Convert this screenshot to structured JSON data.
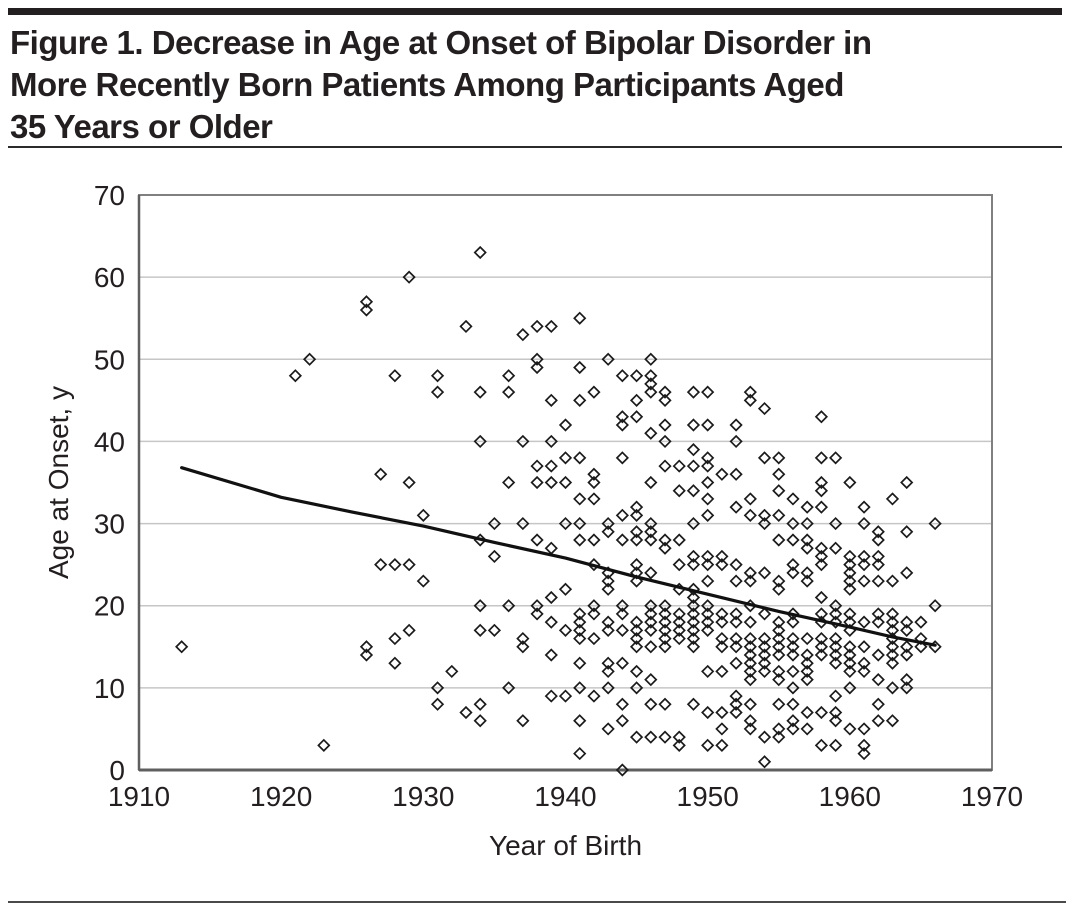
{
  "figure": {
    "title_lines": [
      "Figure 1. Decrease in Age at Onset of Bipolar Disorder in",
      "More Recently Born Patients Among Participants Aged",
      "35 Years or Older"
    ]
  },
  "colors": {
    "title": "#231f20",
    "plot_border": "#808080",
    "axis_line": "#5f5f5f",
    "gridline": "#c6c6c6",
    "marker": "#1b1b1b",
    "trend": "#111111",
    "text": "#231f20"
  },
  "chart_data": {
    "type": "scatter",
    "title": "",
    "xlabel": "Year of Birth",
    "ylabel": "Age at Onset, y",
    "xlim": [
      1910,
      1970
    ],
    "ylim": [
      0,
      70
    ],
    "xticks": [
      1910,
      1920,
      1930,
      1940,
      1950,
      1960,
      1970
    ],
    "yticks": [
      0,
      10,
      20,
      30,
      40,
      50,
      60,
      70
    ],
    "grid": "horizontal",
    "legend": "none",
    "marker": "open-diamond",
    "trend_line": {
      "style": "solid-black-curve",
      "points": [
        [
          1913,
          36.8
        ],
        [
          1920,
          33.2
        ],
        [
          1925,
          31.4
        ],
        [
          1930,
          29.7
        ],
        [
          1935,
          27.7
        ],
        [
          1940,
          25.8
        ],
        [
          1945,
          23.5
        ],
        [
          1950,
          21.4
        ],
        [
          1955,
          19.3
        ],
        [
          1960,
          17.4
        ],
        [
          1963,
          16.2
        ],
        [
          1966,
          15.2
        ]
      ]
    },
    "points": [
      [
        1913,
        15
      ],
      [
        1921,
        48
      ],
      [
        1922,
        50
      ],
      [
        1923,
        3
      ],
      [
        1926,
        57
      ],
      [
        1926,
        56
      ],
      [
        1926,
        15
      ],
      [
        1926,
        14
      ],
      [
        1927,
        36
      ],
      [
        1927,
        25
      ],
      [
        1928,
        48
      ],
      [
        1928,
        25
      ],
      [
        1928,
        16
      ],
      [
        1928,
        13
      ],
      [
        1929,
        60
      ],
      [
        1929,
        35
      ],
      [
        1929,
        25
      ],
      [
        1929,
        17
      ],
      [
        1930,
        31
      ],
      [
        1930,
        23
      ],
      [
        1931,
        48
      ],
      [
        1931,
        46
      ],
      [
        1931,
        10
      ],
      [
        1931,
        8
      ],
      [
        1932,
        12
      ],
      [
        1933,
        54
      ],
      [
        1933,
        7
      ],
      [
        1934,
        63
      ],
      [
        1934,
        46
      ],
      [
        1934,
        40
      ],
      [
        1934,
        28
      ],
      [
        1934,
        20
      ],
      [
        1934,
        17
      ],
      [
        1934,
        8
      ],
      [
        1934,
        6
      ],
      [
        1935,
        30
      ],
      [
        1935,
        26
      ],
      [
        1935,
        17
      ],
      [
        1936,
        48
      ],
      [
        1936,
        46
      ],
      [
        1936,
        35
      ],
      [
        1936,
        20
      ],
      [
        1936,
        10
      ],
      [
        1937,
        53
      ],
      [
        1937,
        40
      ],
      [
        1937,
        30
      ],
      [
        1937,
        16
      ],
      [
        1937,
        15
      ],
      [
        1937,
        6
      ],
      [
        1938,
        54
      ],
      [
        1938,
        50
      ],
      [
        1938,
        49
      ],
      [
        1938,
        37
      ],
      [
        1938,
        35
      ],
      [
        1938,
        28
      ],
      [
        1938,
        20
      ],
      [
        1938,
        19
      ],
      [
        1939,
        54
      ],
      [
        1939,
        45
      ],
      [
        1939,
        40
      ],
      [
        1939,
        37
      ],
      [
        1939,
        35
      ],
      [
        1939,
        27
      ],
      [
        1939,
        21
      ],
      [
        1939,
        18
      ],
      [
        1939,
        14
      ],
      [
        1939,
        9
      ],
      [
        1940,
        42
      ],
      [
        1940,
        38
      ],
      [
        1940,
        35
      ],
      [
        1940,
        30
      ],
      [
        1940,
        22
      ],
      [
        1940,
        17
      ],
      [
        1940,
        9
      ],
      [
        1941,
        55
      ],
      [
        1941,
        49
      ],
      [
        1941,
        45
      ],
      [
        1941,
        38
      ],
      [
        1941,
        33
      ],
      [
        1941,
        30
      ],
      [
        1941,
        28
      ],
      [
        1941,
        19
      ],
      [
        1941,
        18
      ],
      [
        1941,
        17
      ],
      [
        1941,
        16
      ],
      [
        1941,
        13
      ],
      [
        1941,
        10
      ],
      [
        1941,
        6
      ],
      [
        1941,
        2
      ],
      [
        1942,
        46
      ],
      [
        1942,
        36
      ],
      [
        1942,
        35
      ],
      [
        1942,
        33
      ],
      [
        1942,
        28
      ],
      [
        1942,
        25
      ],
      [
        1942,
        20
      ],
      [
        1942,
        19
      ],
      [
        1942,
        16
      ],
      [
        1942,
        9
      ],
      [
        1943,
        50
      ],
      [
        1943,
        30
      ],
      [
        1943,
        29
      ],
      [
        1943,
        24
      ],
      [
        1943,
        23
      ],
      [
        1943,
        22
      ],
      [
        1943,
        18
      ],
      [
        1943,
        17
      ],
      [
        1943,
        13
      ],
      [
        1943,
        12
      ],
      [
        1943,
        10
      ],
      [
        1943,
        5
      ],
      [
        1944,
        48
      ],
      [
        1944,
        43
      ],
      [
        1944,
        42
      ],
      [
        1944,
        38
      ],
      [
        1944,
        31
      ],
      [
        1944,
        28
      ],
      [
        1944,
        20
      ],
      [
        1944,
        19
      ],
      [
        1944,
        17
      ],
      [
        1944,
        13
      ],
      [
        1944,
        8
      ],
      [
        1944,
        6
      ],
      [
        1944,
        0
      ],
      [
        1945,
        48
      ],
      [
        1945,
        45
      ],
      [
        1945,
        43
      ],
      [
        1945,
        32
      ],
      [
        1945,
        31
      ],
      [
        1945,
        29
      ],
      [
        1945,
        28
      ],
      [
        1945,
        25
      ],
      [
        1945,
        24
      ],
      [
        1945,
        23
      ],
      [
        1945,
        18
      ],
      [
        1945,
        17
      ],
      [
        1945,
        16
      ],
      [
        1945,
        15
      ],
      [
        1945,
        12
      ],
      [
        1945,
        10
      ],
      [
        1945,
        4
      ],
      [
        1946,
        50
      ],
      [
        1946,
        48
      ],
      [
        1946,
        47
      ],
      [
        1946,
        46
      ],
      [
        1946,
        41
      ],
      [
        1946,
        35
      ],
      [
        1946,
        30
      ],
      [
        1946,
        29
      ],
      [
        1946,
        28
      ],
      [
        1946,
        24
      ],
      [
        1946,
        20
      ],
      [
        1946,
        19
      ],
      [
        1946,
        18
      ],
      [
        1946,
        17
      ],
      [
        1946,
        15
      ],
      [
        1946,
        11
      ],
      [
        1946,
        8
      ],
      [
        1946,
        4
      ],
      [
        1947,
        46
      ],
      [
        1947,
        45
      ],
      [
        1947,
        42
      ],
      [
        1947,
        40
      ],
      [
        1947,
        37
      ],
      [
        1947,
        28
      ],
      [
        1947,
        27
      ],
      [
        1947,
        20
      ],
      [
        1947,
        19
      ],
      [
        1947,
        18
      ],
      [
        1947,
        17
      ],
      [
        1947,
        16
      ],
      [
        1947,
        15
      ],
      [
        1947,
        8
      ],
      [
        1947,
        4
      ],
      [
        1948,
        37
      ],
      [
        1948,
        34
      ],
      [
        1948,
        28
      ],
      [
        1948,
        25
      ],
      [
        1948,
        22
      ],
      [
        1948,
        19
      ],
      [
        1948,
        18
      ],
      [
        1948,
        17
      ],
      [
        1948,
        16
      ],
      [
        1948,
        4
      ],
      [
        1948,
        3
      ],
      [
        1949,
        46
      ],
      [
        1949,
        42
      ],
      [
        1949,
        39
      ],
      [
        1949,
        37
      ],
      [
        1949,
        34
      ],
      [
        1949,
        30
      ],
      [
        1949,
        26
      ],
      [
        1949,
        25
      ],
      [
        1949,
        22
      ],
      [
        1949,
        21
      ],
      [
        1949,
        20
      ],
      [
        1949,
        19
      ],
      [
        1949,
        18
      ],
      [
        1949,
        17
      ],
      [
        1949,
        16
      ],
      [
        1949,
        15
      ],
      [
        1949,
        8
      ],
      [
        1950,
        46
      ],
      [
        1950,
        42
      ],
      [
        1950,
        38
      ],
      [
        1950,
        37
      ],
      [
        1950,
        35
      ],
      [
        1950,
        33
      ],
      [
        1950,
        31
      ],
      [
        1950,
        26
      ],
      [
        1950,
        25
      ],
      [
        1950,
        23
      ],
      [
        1950,
        20
      ],
      [
        1950,
        19
      ],
      [
        1950,
        18
      ],
      [
        1950,
        17
      ],
      [
        1950,
        12
      ],
      [
        1950,
        7
      ],
      [
        1950,
        3
      ],
      [
        1951,
        36
      ],
      [
        1951,
        26
      ],
      [
        1951,
        25
      ],
      [
        1951,
        19
      ],
      [
        1951,
        18
      ],
      [
        1951,
        16
      ],
      [
        1951,
        15
      ],
      [
        1951,
        12
      ],
      [
        1951,
        7
      ],
      [
        1951,
        5
      ],
      [
        1951,
        3
      ],
      [
        1952,
        42
      ],
      [
        1952,
        40
      ],
      [
        1952,
        36
      ],
      [
        1952,
        32
      ],
      [
        1952,
        25
      ],
      [
        1952,
        23
      ],
      [
        1952,
        19
      ],
      [
        1952,
        18
      ],
      [
        1952,
        16
      ],
      [
        1952,
        15
      ],
      [
        1952,
        13
      ],
      [
        1952,
        9
      ],
      [
        1952,
        8
      ],
      [
        1952,
        7
      ],
      [
        1953,
        46
      ],
      [
        1953,
        45
      ],
      [
        1953,
        33
      ],
      [
        1953,
        31
      ],
      [
        1953,
        24
      ],
      [
        1953,
        23
      ],
      [
        1953,
        20
      ],
      [
        1953,
        18
      ],
      [
        1953,
        16
      ],
      [
        1953,
        15
      ],
      [
        1953,
        14
      ],
      [
        1953,
        13
      ],
      [
        1953,
        12
      ],
      [
        1953,
        11
      ],
      [
        1953,
        8
      ],
      [
        1953,
        6
      ],
      [
        1953,
        5
      ],
      [
        1954,
        44
      ],
      [
        1954,
        38
      ],
      [
        1954,
        31
      ],
      [
        1954,
        30
      ],
      [
        1954,
        24
      ],
      [
        1954,
        19
      ],
      [
        1954,
        16
      ],
      [
        1954,
        15
      ],
      [
        1954,
        14
      ],
      [
        1954,
        13
      ],
      [
        1954,
        12
      ],
      [
        1954,
        4
      ],
      [
        1954,
        1
      ],
      [
        1955,
        38
      ],
      [
        1955,
        36
      ],
      [
        1955,
        34
      ],
      [
        1955,
        31
      ],
      [
        1955,
        28
      ],
      [
        1955,
        23
      ],
      [
        1955,
        22
      ],
      [
        1955,
        18
      ],
      [
        1955,
        17
      ],
      [
        1955,
        16
      ],
      [
        1955,
        15
      ],
      [
        1955,
        14
      ],
      [
        1955,
        12
      ],
      [
        1955,
        11
      ],
      [
        1955,
        8
      ],
      [
        1955,
        5
      ],
      [
        1955,
        4
      ],
      [
        1956,
        33
      ],
      [
        1956,
        30
      ],
      [
        1956,
        28
      ],
      [
        1956,
        25
      ],
      [
        1956,
        24
      ],
      [
        1956,
        19
      ],
      [
        1956,
        18
      ],
      [
        1956,
        16
      ],
      [
        1956,
        15
      ],
      [
        1956,
        14
      ],
      [
        1956,
        12
      ],
      [
        1956,
        10
      ],
      [
        1956,
        8
      ],
      [
        1956,
        6
      ],
      [
        1956,
        5
      ],
      [
        1957,
        32
      ],
      [
        1957,
        30
      ],
      [
        1957,
        28
      ],
      [
        1957,
        27
      ],
      [
        1957,
        24
      ],
      [
        1957,
        23
      ],
      [
        1957,
        16
      ],
      [
        1957,
        14
      ],
      [
        1957,
        13
      ],
      [
        1957,
        12
      ],
      [
        1957,
        11
      ],
      [
        1957,
        7
      ],
      [
        1957,
        5
      ],
      [
        1958,
        43
      ],
      [
        1958,
        38
      ],
      [
        1958,
        35
      ],
      [
        1958,
        34
      ],
      [
        1958,
        32
      ],
      [
        1958,
        27
      ],
      [
        1958,
        26
      ],
      [
        1958,
        25
      ],
      [
        1958,
        21
      ],
      [
        1958,
        19
      ],
      [
        1958,
        18
      ],
      [
        1958,
        16
      ],
      [
        1958,
        15
      ],
      [
        1958,
        14
      ],
      [
        1958,
        7
      ],
      [
        1958,
        3
      ],
      [
        1959,
        38
      ],
      [
        1959,
        30
      ],
      [
        1959,
        27
      ],
      [
        1959,
        20
      ],
      [
        1959,
        19
      ],
      [
        1959,
        18
      ],
      [
        1959,
        16
      ],
      [
        1959,
        15
      ],
      [
        1959,
        14
      ],
      [
        1959,
        13
      ],
      [
        1959,
        9
      ],
      [
        1959,
        7
      ],
      [
        1959,
        6
      ],
      [
        1959,
        3
      ],
      [
        1960,
        35
      ],
      [
        1960,
        26
      ],
      [
        1960,
        25
      ],
      [
        1960,
        24
      ],
      [
        1960,
        23
      ],
      [
        1960,
        22
      ],
      [
        1960,
        19
      ],
      [
        1960,
        18
      ],
      [
        1960,
        17
      ],
      [
        1960,
        15
      ],
      [
        1960,
        14
      ],
      [
        1960,
        13
      ],
      [
        1960,
        12
      ],
      [
        1960,
        10
      ],
      [
        1960,
        5
      ],
      [
        1961,
        32
      ],
      [
        1961,
        30
      ],
      [
        1961,
        26
      ],
      [
        1961,
        25
      ],
      [
        1961,
        23
      ],
      [
        1961,
        18
      ],
      [
        1961,
        15
      ],
      [
        1961,
        13
      ],
      [
        1961,
        12
      ],
      [
        1961,
        5
      ],
      [
        1961,
        3
      ],
      [
        1961,
        2
      ],
      [
        1962,
        29
      ],
      [
        1962,
        28
      ],
      [
        1962,
        26
      ],
      [
        1962,
        25
      ],
      [
        1962,
        23
      ],
      [
        1962,
        19
      ],
      [
        1962,
        18
      ],
      [
        1962,
        14
      ],
      [
        1962,
        11
      ],
      [
        1962,
        8
      ],
      [
        1962,
        6
      ],
      [
        1963,
        33
      ],
      [
        1963,
        23
      ],
      [
        1963,
        19
      ],
      [
        1963,
        18
      ],
      [
        1963,
        17
      ],
      [
        1963,
        16
      ],
      [
        1963,
        15
      ],
      [
        1963,
        14
      ],
      [
        1963,
        13
      ],
      [
        1963,
        10
      ],
      [
        1963,
        6
      ],
      [
        1964,
        35
      ],
      [
        1964,
        29
      ],
      [
        1964,
        24
      ],
      [
        1964,
        18
      ],
      [
        1964,
        17
      ],
      [
        1964,
        15
      ],
      [
        1964,
        14
      ],
      [
        1964,
        11
      ],
      [
        1964,
        10
      ],
      [
        1965,
        18
      ],
      [
        1965,
        16
      ],
      [
        1965,
        15
      ],
      [
        1966,
        30
      ],
      [
        1966,
        20
      ],
      [
        1966,
        15
      ]
    ]
  }
}
